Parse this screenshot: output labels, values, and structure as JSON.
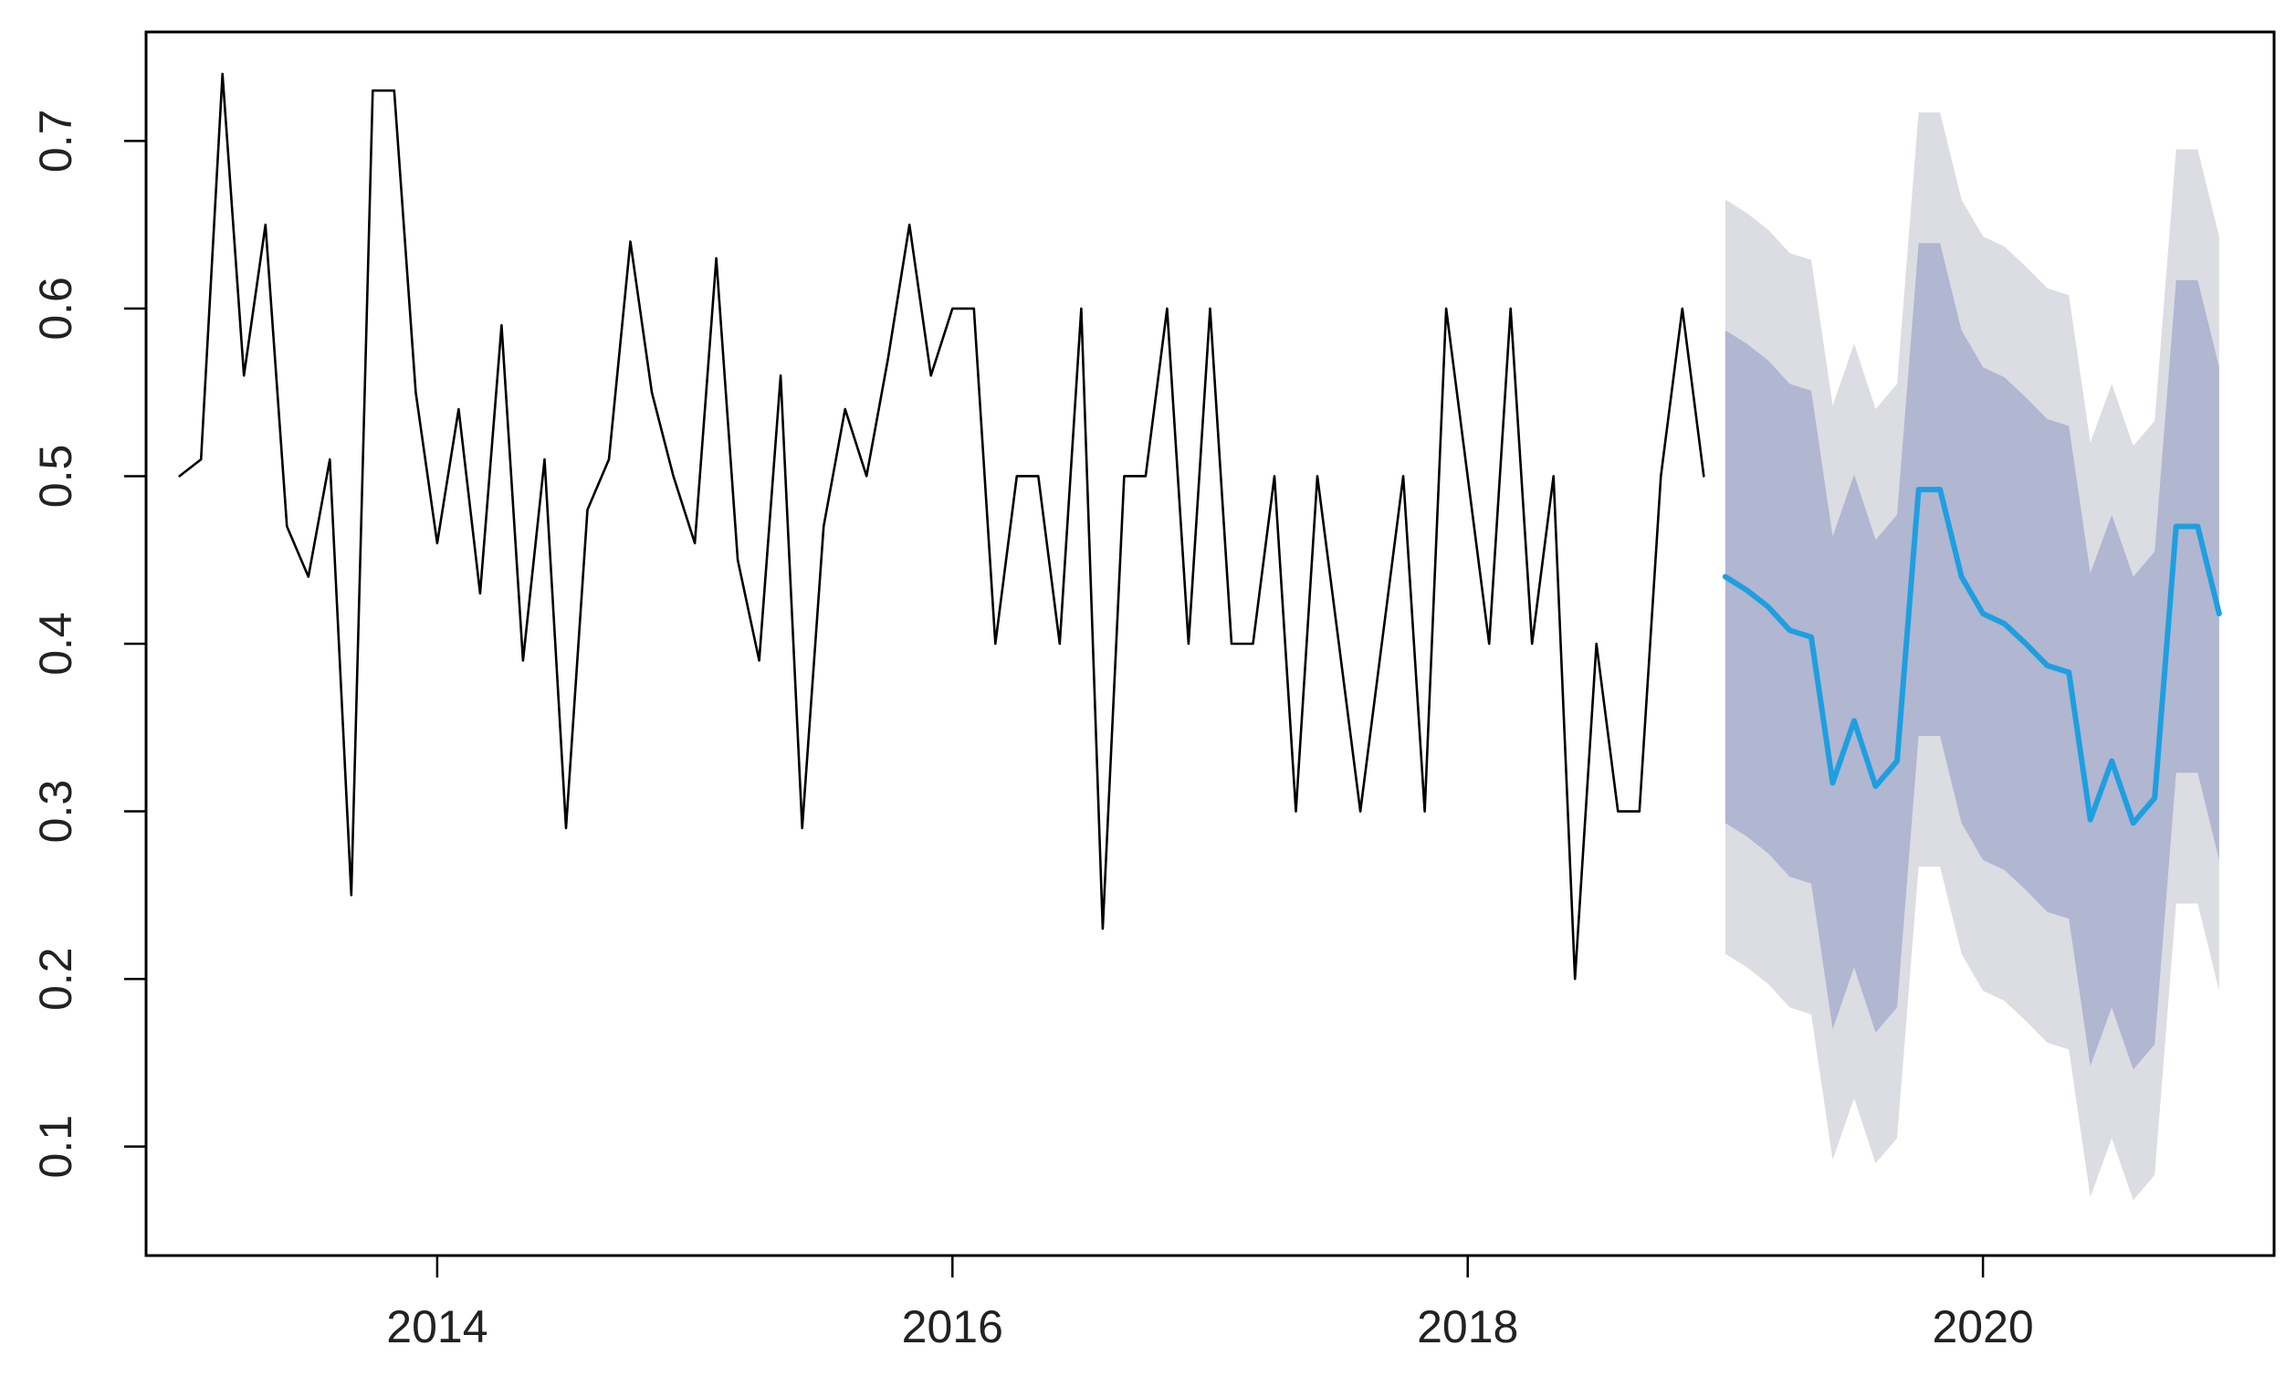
{
  "chart_data": {
    "type": "line",
    "title": "",
    "xlabel": "",
    "ylabel": "",
    "xlim": [
      2012.87,
      2021.13
    ],
    "ylim": [
      0.035,
      0.765
    ],
    "x_ticks": [
      2014,
      2016,
      2018,
      2020
    ],
    "x_tick_labels": [
      "2014",
      "2016",
      "2018",
      "2020"
    ],
    "y_ticks": [
      0.1,
      0.2,
      0.3,
      0.4,
      0.5,
      0.6,
      0.7
    ],
    "y_tick_labels": [
      "0.1",
      "0.2",
      "0.3",
      "0.4",
      "0.5",
      "0.6",
      "0.7"
    ],
    "grid": false,
    "legend": "none",
    "series": [
      {
        "role": "observed",
        "color": "#000000",
        "x_start": 2013.0,
        "step": 0.08333,
        "values": [
          0.5,
          0.51,
          0.74,
          0.56,
          0.65,
          0.47,
          0.44,
          0.51,
          0.25,
          0.73,
          0.73,
          0.55,
          0.46,
          0.54,
          0.43,
          0.59,
          0.39,
          0.51,
          0.29,
          0.48,
          0.51,
          0.64,
          0.55,
          0.5,
          0.46,
          0.63,
          0.45,
          0.39,
          0.56,
          0.29,
          0.47,
          0.54,
          0.5,
          0.57,
          0.65,
          0.56,
          0.6,
          0.6,
          0.4,
          0.5,
          0.5,
          0.4,
          0.6,
          0.23,
          0.5,
          0.5,
          0.6,
          0.4,
          0.6,
          0.4,
          0.4,
          0.5,
          0.3,
          0.5,
          0.4,
          0.3,
          0.4,
          0.5,
          0.3,
          0.6,
          0.5,
          0.4,
          0.6,
          0.4,
          0.5,
          0.2,
          0.4,
          0.3,
          0.3,
          0.5,
          0.6,
          0.5
        ]
      },
      {
        "role": "forecast",
        "color": "#1e9fe0",
        "x_start": 2019.0,
        "step": 0.08333,
        "values": [
          0.44,
          0.432,
          0.422,
          0.408,
          0.404,
          0.317,
          0.354,
          0.315,
          0.33,
          0.492,
          0.492,
          0.44,
          0.418,
          0.412,
          0.4,
          0.387,
          0.383,
          0.295,
          0.33,
          0.293,
          0.308,
          0.47,
          0.47,
          0.418
        ],
        "bands": [
          {
            "level": "95%",
            "color": "#dcdce3",
            "lower": [
              0.215,
              0.207,
              0.197,
              0.183,
              0.179,
              0.092,
              0.129,
              0.09,
              0.105,
              0.267,
              0.267,
              0.215,
              0.193,
              0.187,
              0.175,
              0.162,
              0.158,
              0.07,
              0.105,
              0.068,
              0.083,
              0.245,
              0.245,
              0.193
            ],
            "upper": [
              0.665,
              0.657,
              0.647,
              0.633,
              0.629,
              0.542,
              0.579,
              0.54,
              0.555,
              0.717,
              0.717,
              0.665,
              0.643,
              0.637,
              0.625,
              0.612,
              0.608,
              0.52,
              0.555,
              0.518,
              0.533,
              0.695,
              0.695,
              0.643
            ]
          },
          {
            "level": "80%",
            "color": "#b1b6d1",
            "lower": [
              0.293,
              0.285,
              0.275,
              0.261,
              0.257,
              0.17,
              0.207,
              0.168,
              0.183,
              0.345,
              0.345,
              0.293,
              0.271,
              0.265,
              0.253,
              0.24,
              0.236,
              0.148,
              0.183,
              0.146,
              0.161,
              0.323,
              0.323,
              0.271
            ],
            "upper": [
              0.587,
              0.579,
              0.569,
              0.555,
              0.551,
              0.464,
              0.501,
              0.462,
              0.477,
              0.639,
              0.639,
              0.587,
              0.565,
              0.559,
              0.547,
              0.534,
              0.53,
              0.442,
              0.477,
              0.44,
              0.455,
              0.617,
              0.617,
              0.565
            ]
          }
        ]
      }
    ]
  }
}
